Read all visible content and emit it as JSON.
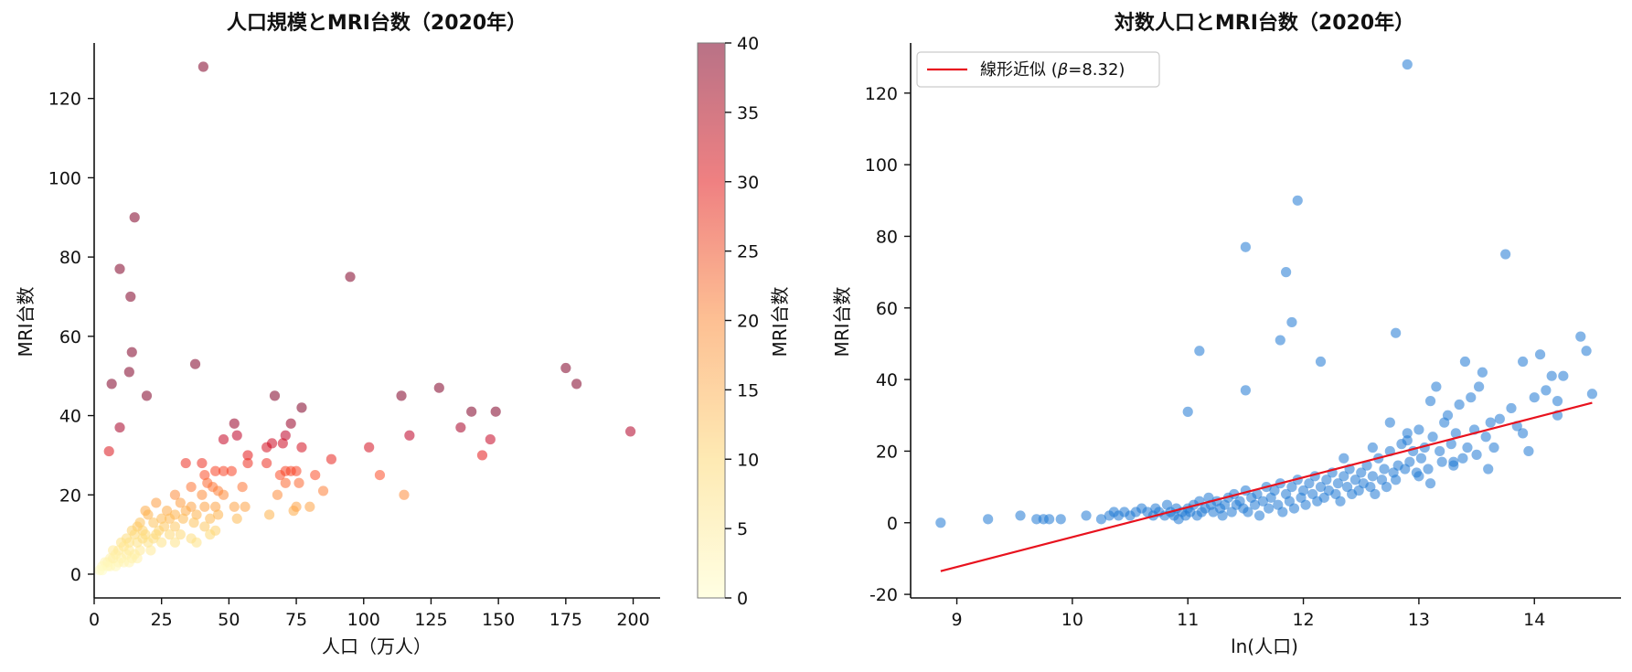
{
  "chart_data": [
    {
      "type": "scatter",
      "title": "人口規模とMRI台数（2020年）",
      "xlabel": "人口（万人）",
      "ylabel": "MRI台数",
      "xlim": [
        0,
        210
      ],
      "ylim": [
        -6,
        134
      ],
      "xticks": [
        0,
        25,
        50,
        75,
        100,
        125,
        150,
        175,
        200
      ],
      "yticks": [
        0,
        20,
        40,
        60,
        80,
        100,
        120
      ],
      "grid": false,
      "color_by": "MRI台数",
      "colorbar": {
        "label": "MRI台数",
        "range": [
          0,
          40
        ],
        "ticks": [
          0,
          5,
          10,
          15,
          20,
          25,
          30,
          35,
          40
        ],
        "colormap": "YlOrRd"
      },
      "points": [
        [
          40.5,
          128
        ],
        [
          15,
          90
        ],
        [
          9.5,
          77
        ],
        [
          13.5,
          70
        ],
        [
          95,
          75
        ],
        [
          6.5,
          48
        ],
        [
          14,
          56
        ],
        [
          37.5,
          53
        ],
        [
          19.5,
          45
        ],
        [
          13,
          51
        ],
        [
          5.5,
          31
        ],
        [
          9.5,
          37
        ],
        [
          175,
          52
        ],
        [
          179,
          48
        ],
        [
          128,
          47
        ],
        [
          114,
          45
        ],
        [
          149,
          41
        ],
        [
          140,
          41
        ],
        [
          136,
          37
        ],
        [
          147,
          34
        ],
        [
          144,
          30
        ],
        [
          199,
          36
        ],
        [
          117,
          35
        ],
        [
          77,
          42
        ],
        [
          67,
          45
        ],
        [
          73,
          38
        ],
        [
          52,
          38
        ],
        [
          71,
          35
        ],
        [
          53,
          35
        ],
        [
          77,
          32
        ],
        [
          102,
          32
        ],
        [
          64,
          32
        ],
        [
          48,
          34
        ],
        [
          70,
          33
        ],
        [
          66,
          33
        ],
        [
          57,
          30
        ],
        [
          88,
          29
        ],
        [
          57,
          28
        ],
        [
          64,
          28
        ],
        [
          34,
          28
        ],
        [
          40,
          28
        ],
        [
          106,
          25
        ],
        [
          82,
          25
        ],
        [
          69,
          25
        ],
        [
          73,
          26
        ],
        [
          75,
          26
        ],
        [
          71,
          26
        ],
        [
          48,
          26
        ],
        [
          51,
          26
        ],
        [
          45,
          26
        ],
        [
          41,
          25
        ],
        [
          42,
          23
        ],
        [
          36,
          22
        ],
        [
          44,
          22
        ],
        [
          46,
          21
        ],
        [
          55,
          22
        ],
        [
          85,
          21
        ],
        [
          76,
          23
        ],
        [
          71,
          23
        ],
        [
          68,
          20
        ],
        [
          80,
          17
        ],
        [
          115,
          20
        ],
        [
          30,
          20
        ],
        [
          40,
          20
        ],
        [
          48,
          20
        ],
        [
          32,
          18
        ],
        [
          23,
          18
        ],
        [
          36,
          17
        ],
        [
          45,
          17
        ],
        [
          52,
          17
        ],
        [
          56,
          17
        ],
        [
          41,
          17
        ],
        [
          74,
          16
        ],
        [
          75,
          17
        ],
        [
          65,
          15
        ],
        [
          46,
          15
        ],
        [
          43,
          14
        ],
        [
          53,
          14
        ],
        [
          38,
          15
        ],
        [
          27,
          16
        ],
        [
          30,
          15
        ],
        [
          34,
          16
        ],
        [
          25,
          14
        ],
        [
          19,
          16
        ],
        [
          20,
          15
        ],
        [
          28,
          14
        ],
        [
          33,
          14
        ],
        [
          37,
          13
        ],
        [
          41,
          12
        ],
        [
          45,
          11
        ],
        [
          43,
          10
        ],
        [
          22,
          13
        ],
        [
          26,
          12
        ],
        [
          30,
          12
        ],
        [
          17,
          13
        ],
        [
          16,
          12
        ],
        [
          18,
          11
        ],
        [
          24,
          11
        ],
        [
          28,
          10
        ],
        [
          32,
          10
        ],
        [
          36,
          9
        ],
        [
          38,
          8
        ],
        [
          19,
          10
        ],
        [
          22,
          9
        ],
        [
          14,
          11
        ],
        [
          15,
          10
        ],
        [
          12,
          9
        ],
        [
          13,
          8
        ],
        [
          16,
          8
        ],
        [
          20,
          8
        ],
        [
          25,
          8
        ],
        [
          30,
          8
        ],
        [
          10,
          8
        ],
        [
          11,
          7
        ],
        [
          9,
          6
        ],
        [
          13,
          6
        ],
        [
          17,
          6
        ],
        [
          21,
          6
        ],
        [
          7,
          6
        ],
        [
          8,
          5
        ],
        [
          12,
          5
        ],
        [
          15,
          5
        ],
        [
          6,
          4
        ],
        [
          10,
          4
        ],
        [
          14,
          4
        ],
        [
          5,
          3
        ],
        [
          4,
          3
        ],
        [
          9,
          3
        ],
        [
          3,
          2
        ],
        [
          2,
          1
        ],
        [
          6,
          2
        ],
        [
          8,
          2
        ],
        [
          11,
          3
        ],
        [
          13,
          3
        ],
        [
          16,
          4
        ],
        [
          7,
          4
        ],
        [
          5,
          2
        ],
        [
          3,
          1
        ],
        [
          18,
          9
        ],
        [
          23,
          10
        ]
      ]
    },
    {
      "type": "scatter",
      "title": "対数人口とMRI台数（2020年）",
      "xlabel": "ln(人口)",
      "ylabel": "MRI台数",
      "xlim": [
        8.6,
        14.75
      ],
      "ylim": [
        -21,
        134
      ],
      "xticks": [
        9,
        10,
        11,
        12,
        13,
        14
      ],
      "yticks": [
        -20,
        0,
        20,
        40,
        60,
        80,
        100,
        120
      ],
      "grid": false,
      "point_color": "#1f78d4",
      "legend": {
        "position": "top-left",
        "entries": [
          "線形近似 (",
          "β",
          "=8.32)"
        ]
      },
      "fit_line": {
        "color": "#e8121e",
        "x": [
          8.86,
          14.5
        ],
        "y": [
          -13.5,
          33.5
        ]
      },
      "points": [
        [
          8.86,
          0
        ],
        [
          9.27,
          1
        ],
        [
          9.55,
          2
        ],
        [
          9.69,
          1
        ],
        [
          9.75,
          1
        ],
        [
          9.8,
          1
        ],
        [
          9.9,
          1
        ],
        [
          10.12,
          2
        ],
        [
          10.25,
          1
        ],
        [
          10.32,
          2
        ],
        [
          10.36,
          3
        ],
        [
          10.4,
          2
        ],
        [
          10.45,
          3
        ],
        [
          10.5,
          2
        ],
        [
          10.55,
          3
        ],
        [
          10.6,
          4
        ],
        [
          10.65,
          3
        ],
        [
          10.7,
          2
        ],
        [
          10.72,
          4
        ],
        [
          10.75,
          3
        ],
        [
          10.8,
          2
        ],
        [
          10.82,
          5
        ],
        [
          10.85,
          3
        ],
        [
          10.88,
          2
        ],
        [
          10.9,
          4
        ],
        [
          10.92,
          1
        ],
        [
          10.95,
          3
        ],
        [
          10.98,
          2
        ],
        [
          11.0,
          4
        ],
        [
          11.02,
          3
        ],
        [
          11.05,
          5
        ],
        [
          11.08,
          2
        ],
        [
          11.1,
          6
        ],
        [
          11.12,
          3
        ],
        [
          11.15,
          4
        ],
        [
          11.18,
          7
        ],
        [
          11.2,
          5
        ],
        [
          11.22,
          3
        ],
        [
          11.25,
          6
        ],
        [
          11.28,
          4
        ],
        [
          11.3,
          2
        ],
        [
          11.32,
          5
        ],
        [
          11.35,
          7
        ],
        [
          11.38,
          3
        ],
        [
          11.4,
          8
        ],
        [
          11.42,
          5
        ],
        [
          11.45,
          6
        ],
        [
          11.48,
          4
        ],
        [
          11.5,
          9
        ],
        [
          11.52,
          3
        ],
        [
          11.55,
          7
        ],
        [
          11.58,
          5
        ],
        [
          11.6,
          8
        ],
        [
          11.62,
          2
        ],
        [
          11.65,
          6
        ],
        [
          11.68,
          10
        ],
        [
          11.7,
          4
        ],
        [
          11.72,
          7
        ],
        [
          11.75,
          9
        ],
        [
          11.78,
          5
        ],
        [
          11.8,
          11
        ],
        [
          11.82,
          3
        ],
        [
          11.85,
          8
        ],
        [
          11.88,
          6
        ],
        [
          11.9,
          10
        ],
        [
          11.92,
          4
        ],
        [
          11.95,
          12
        ],
        [
          11.98,
          7
        ],
        [
          12.0,
          9
        ],
        [
          12.02,
          5
        ],
        [
          12.05,
          11
        ],
        [
          12.08,
          8
        ],
        [
          12.1,
          13
        ],
        [
          12.12,
          6
        ],
        [
          12.15,
          10
        ],
        [
          12.18,
          7
        ],
        [
          12.2,
          12
        ],
        [
          12.22,
          9
        ],
        [
          12.25,
          14
        ],
        [
          12.28,
          8
        ],
        [
          12.3,
          11
        ],
        [
          12.32,
          6
        ],
        [
          12.35,
          13
        ],
        [
          12.38,
          10
        ],
        [
          12.4,
          15
        ],
        [
          12.42,
          8
        ],
        [
          12.45,
          12
        ],
        [
          12.48,
          9
        ],
        [
          12.5,
          14
        ],
        [
          12.52,
          11
        ],
        [
          12.55,
          16
        ],
        [
          12.58,
          10
        ],
        [
          12.6,
          13
        ],
        [
          12.62,
          8
        ],
        [
          12.65,
          18
        ],
        [
          12.68,
          12
        ],
        [
          12.7,
          15
        ],
        [
          12.72,
          10
        ],
        [
          12.75,
          20
        ],
        [
          12.78,
          14
        ],
        [
          12.8,
          12
        ],
        [
          12.82,
          16
        ],
        [
          12.85,
          22
        ],
        [
          12.88,
          15
        ],
        [
          12.9,
          25
        ],
        [
          12.92,
          17
        ],
        [
          12.95,
          20
        ],
        [
          12.98,
          14
        ],
        [
          13.0,
          26
        ],
        [
          13.02,
          18
        ],
        [
          13.05,
          21
        ],
        [
          13.08,
          15
        ],
        [
          13.1,
          34
        ],
        [
          13.12,
          24
        ],
        [
          13.15,
          38
        ],
        [
          13.18,
          20
        ],
        [
          13.2,
          17
        ],
        [
          13.22,
          28
        ],
        [
          13.25,
          30
        ],
        [
          13.28,
          22
        ],
        [
          13.3,
          16
        ],
        [
          13.32,
          25
        ],
        [
          13.35,
          33
        ],
        [
          13.38,
          18
        ],
        [
          13.4,
          45
        ],
        [
          13.42,
          21
        ],
        [
          13.45,
          35
        ],
        [
          13.48,
          26
        ],
        [
          13.5,
          19
        ],
        [
          13.52,
          38
        ],
        [
          13.55,
          42
        ],
        [
          13.58,
          24
        ],
        [
          13.6,
          15
        ],
        [
          13.62,
          28
        ],
        [
          13.65,
          21
        ],
        [
          13.7,
          29
        ],
        [
          13.75,
          75
        ],
        [
          13.8,
          32
        ],
        [
          13.85,
          27
        ],
        [
          13.9,
          45
        ],
        [
          13.95,
          20
        ],
        [
          14.0,
          35
        ],
        [
          14.05,
          47
        ],
        [
          14.1,
          37
        ],
        [
          14.15,
          41
        ],
        [
          14.2,
          34
        ],
        [
          14.25,
          41
        ],
        [
          14.4,
          52
        ],
        [
          14.45,
          48
        ],
        [
          14.5,
          36
        ],
        [
          11.5,
          77
        ],
        [
          11.85,
          70
        ],
        [
          11.95,
          90
        ],
        [
          12.9,
          128
        ],
        [
          11.9,
          56
        ],
        [
          12.8,
          53
        ],
        [
          11.1,
          48
        ],
        [
          12.15,
          45
        ],
        [
          11.0,
          31
        ],
        [
          11.5,
          37
        ],
        [
          11.8,
          51
        ],
        [
          14.2,
          30
        ],
        [
          13.9,
          25
        ],
        [
          12.35,
          18
        ],
        [
          12.6,
          21
        ],
        [
          12.9,
          23
        ],
        [
          13.0,
          13
        ],
        [
          13.1,
          11
        ],
        [
          12.75,
          28
        ],
        [
          13.3,
          17
        ]
      ]
    }
  ]
}
